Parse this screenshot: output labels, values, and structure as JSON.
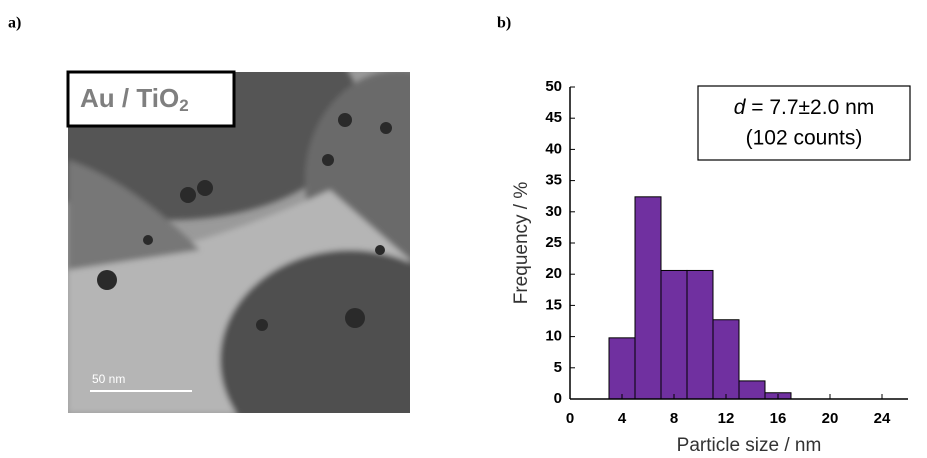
{
  "panels": [
    {
      "label": "a)"
    },
    {
      "label": "b)"
    }
  ],
  "image": {
    "label_main": "Au / TiO",
    "label_sub": "2",
    "scale_bar": "50 nm"
  },
  "chart_data": {
    "type": "histogram",
    "xlabel": "Particle size / nm",
    "ylabel": "Frequency / %",
    "annotation": {
      "symbol": "d",
      "text": " = 7.7±2.0 nm",
      "counts": "(102 counts)"
    },
    "bins": [
      3,
      5,
      7,
      9,
      11,
      13,
      15,
      17
    ],
    "values": [
      9.8,
      32.4,
      20.6,
      20.6,
      12.7,
      2.9,
      1.0
    ],
    "color": "#7030a0",
    "xlim": [
      0,
      26
    ],
    "xticks": [
      0,
      4,
      8,
      12,
      16,
      20,
      24
    ],
    "ylim": [
      0,
      50
    ],
    "yticks": [
      0,
      5,
      10,
      15,
      20,
      25,
      30,
      35,
      40,
      45,
      50
    ]
  }
}
